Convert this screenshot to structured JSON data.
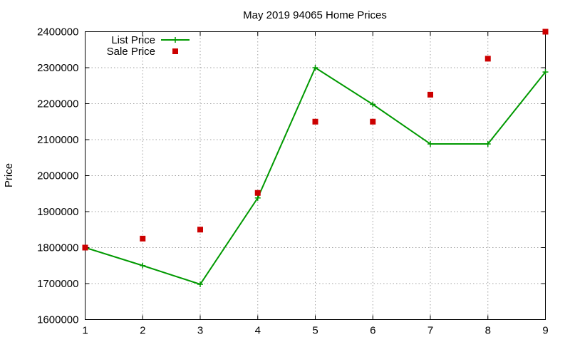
{
  "chart_data": {
    "type": "line",
    "title": "May 2019 94065 Home Prices",
    "xlabel": "",
    "ylabel": "Price",
    "x": [
      1,
      2,
      3,
      4,
      5,
      6,
      7,
      8,
      9
    ],
    "xlim": [
      1,
      9
    ],
    "ylim": [
      1600000,
      2400000
    ],
    "x_ticks": [
      "1",
      "2",
      "3",
      "4",
      "5",
      "6",
      "7",
      "8",
      "9"
    ],
    "y_ticks": [
      "1600000",
      "1700000",
      "1800000",
      "1900000",
      "2000000",
      "2100000",
      "2200000",
      "2300000",
      "2400000"
    ],
    "grid": true,
    "legend_position": "top-left",
    "series": [
      {
        "name": "List Price",
        "kind": "line-points",
        "color": "#009900",
        "marker": "plus",
        "values": [
          1800000,
          1750000,
          1698000,
          1938000,
          2300000,
          2198000,
          2088000,
          2088000,
          2288000
        ]
      },
      {
        "name": "Sale Price",
        "kind": "points",
        "color": "#cc0000",
        "marker": "square",
        "values": [
          1800000,
          1825000,
          1850000,
          1952000,
          2150000,
          2150000,
          2225000,
          2325000,
          2400000
        ]
      }
    ]
  }
}
